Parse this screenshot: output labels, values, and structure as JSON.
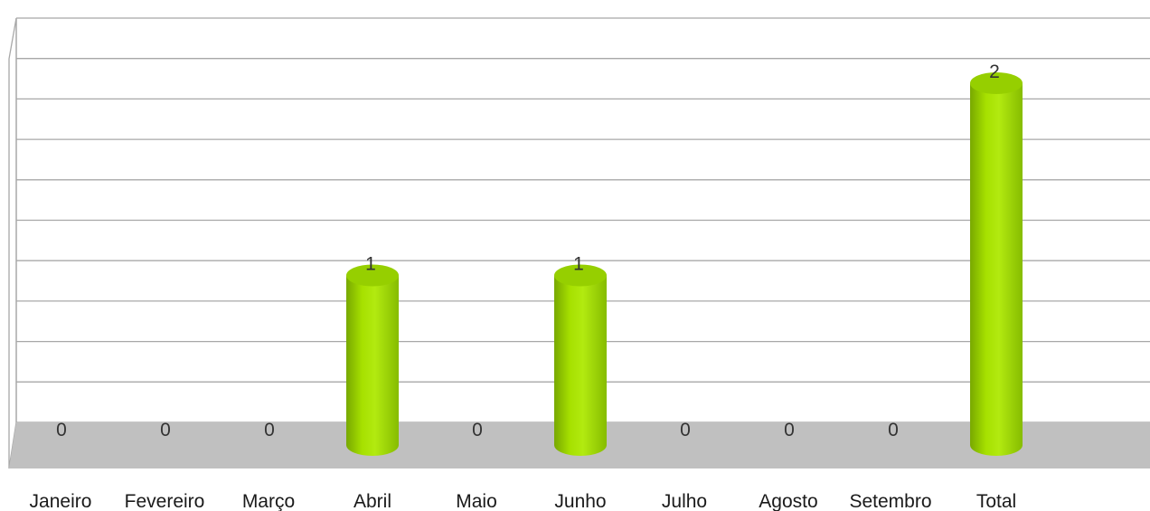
{
  "chart_data": {
    "type": "bar",
    "title": "",
    "xlabel": "",
    "ylabel": "",
    "categories": [
      "Janeiro",
      "Fevereiro",
      "Março",
      "Abril",
      "Maio",
      "Junho",
      "Julho",
      "Agosto",
      "Setembro",
      "Total"
    ],
    "values": [
      0,
      0,
      0,
      1,
      0,
      1,
      0,
      0,
      0,
      2
    ],
    "data_labels": [
      "0",
      "0",
      "0",
      "1",
      "0",
      "1",
      "0",
      "0",
      "0",
      "2"
    ],
    "ylim": [
      0,
      2
    ],
    "grid": true,
    "legend": "none",
    "style": "3d-cylinder"
  },
  "colors": {
    "bar": "#a6e000",
    "bar_dark": "#7fb000",
    "bar_top": "#96cf00",
    "floor": "#c0c0c0",
    "grid": "#a8a8a8"
  }
}
